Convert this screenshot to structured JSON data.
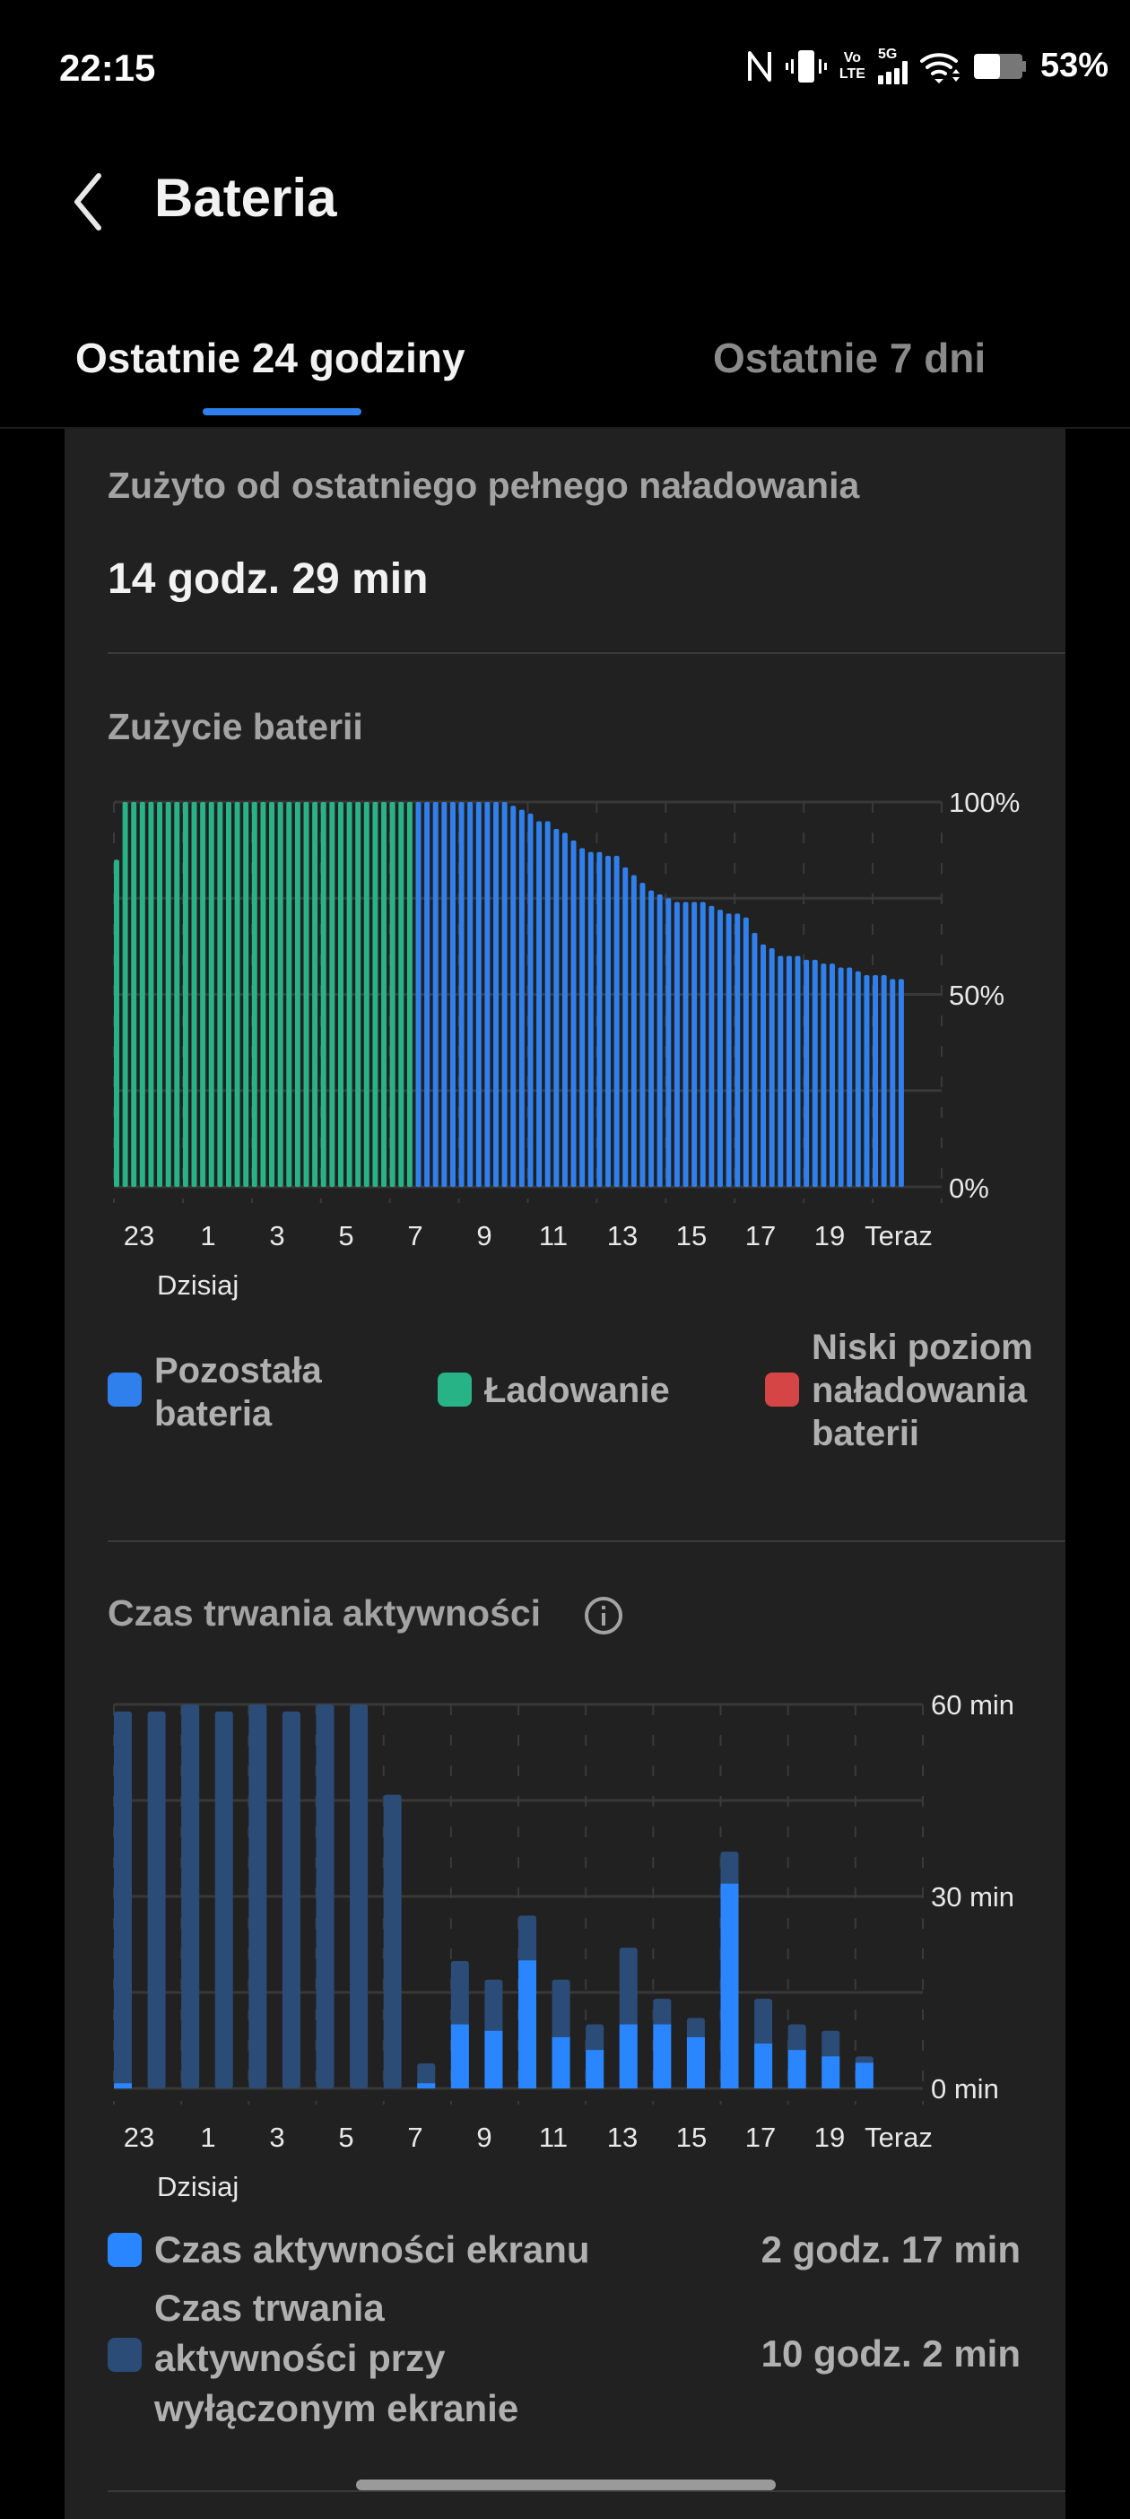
{
  "status_bar": {
    "time": "22:15",
    "battery_percent": "53%",
    "icons": [
      "nfc-icon",
      "vibrate-icon",
      "volte-icon",
      "5g-signal-icon",
      "wifi-icon",
      "battery-icon"
    ],
    "lte_label": "LTE",
    "volte_label": "Vo",
    "fiveg_label": "5G"
  },
  "header": {
    "title": "Bateria",
    "back_icon": "chevron-left-icon"
  },
  "tabs": [
    {
      "label": "Ostatnie 24 godziny",
      "active": true
    },
    {
      "label": "Ostatnie 7 dni",
      "active": false
    }
  ],
  "summary": {
    "label": "Zużyto od ostatniego pełnego naładowania",
    "value": "14 godz. 29 min"
  },
  "battery_usage": {
    "title": "Zużycie baterii"
  },
  "activity": {
    "title": "Czas trwania aktywności",
    "info_icon": "info-icon"
  },
  "colors": {
    "remaining": "#2f80ed",
    "charging": "#28b386",
    "low": "#d64545",
    "screen_on": "#2a86ff",
    "screen_off": "#2c4c78"
  },
  "chart_data": [
    {
      "type": "bar",
      "title": "Zużycie baterii",
      "y_ticks": [
        "100%",
        "50%",
        "0%"
      ],
      "ylim": [
        0,
        100
      ],
      "x_ticks": [
        "23",
        "1",
        "3",
        "5",
        "7",
        "9",
        "11",
        "13",
        "15",
        "17",
        "19",
        "Teraz"
      ],
      "x_sublabel": "Dzisiaj",
      "charging_bar_count": 35,
      "values": [
        85,
        100,
        100,
        100,
        100,
        100,
        100,
        100,
        100,
        100,
        100,
        100,
        100,
        100,
        100,
        100,
        100,
        100,
        100,
        100,
        100,
        100,
        100,
        100,
        100,
        100,
        100,
        100,
        100,
        100,
        100,
        100,
        100,
        100,
        100,
        100,
        100,
        100,
        100,
        100,
        100,
        100,
        100,
        100,
        100,
        100,
        99,
        98,
        97,
        95,
        95,
        93,
        92,
        90,
        88,
        87,
        87,
        86,
        86,
        83,
        81,
        79,
        77,
        76,
        75,
        74,
        74,
        74,
        74,
        73,
        72,
        71,
        71,
        70,
        66,
        63,
        62,
        60,
        60,
        60,
        59,
        59,
        58,
        58,
        57,
        57,
        56,
        55,
        55,
        55,
        54,
        54
      ],
      "legend": [
        {
          "label": "Pozostała bateria",
          "lines": [
            "Pozostała",
            "bateria"
          ],
          "color": "#2f80ed"
        },
        {
          "label": "Ładowanie",
          "lines": [
            "Ładowanie"
          ],
          "color": "#28b386"
        },
        {
          "label": "Niski poziom naładowania baterii",
          "lines": [
            "Niski poziom",
            "naładowania",
            "baterii"
          ],
          "color": "#d64545"
        }
      ]
    },
    {
      "type": "bar",
      "stacked": true,
      "title": "Czas trwania aktywności",
      "y_ticks": [
        "60 min",
        "30 min",
        "0 min"
      ],
      "ylim": [
        0,
        60
      ],
      "x_ticks": [
        "23",
        "1",
        "3",
        "5",
        "7",
        "9",
        "11",
        "13",
        "15",
        "17",
        "19",
        "Teraz"
      ],
      "x_sublabel": "Dzisiaj",
      "series": [
        {
          "name": "Czas aktywności ekranu",
          "values": [
            0.8,
            0,
            0,
            0,
            0,
            0,
            0,
            0,
            0,
            0.8,
            10,
            9,
            20,
            8,
            6,
            10,
            10,
            8,
            32,
            7,
            6,
            5,
            4
          ]
        },
        {
          "name": "Czas trwania aktywności przy wyłączonym ekranie",
          "totals": [
            58.9,
            58.9,
            60,
            58.9,
            60,
            58.9,
            60,
            60,
            45.9,
            3.9,
            19.9,
            17,
            27,
            17,
            10,
            22,
            14,
            11,
            37,
            14,
            10,
            9,
            5
          ]
        }
      ],
      "legend": [
        {
          "label": "Czas aktywności ekranu",
          "lines": [
            "Czas aktywności ekranu"
          ],
          "value": "2 godz. 17 min",
          "color": "#2a86ff"
        },
        {
          "label": "Czas trwania aktywności przy wyłączonym ekranie",
          "lines": [
            "Czas trwania",
            "aktywności przy",
            "wyłączonym ekranie"
          ],
          "value": "10 godz. 2 min",
          "color": "#2c4c78"
        }
      ]
    }
  ]
}
